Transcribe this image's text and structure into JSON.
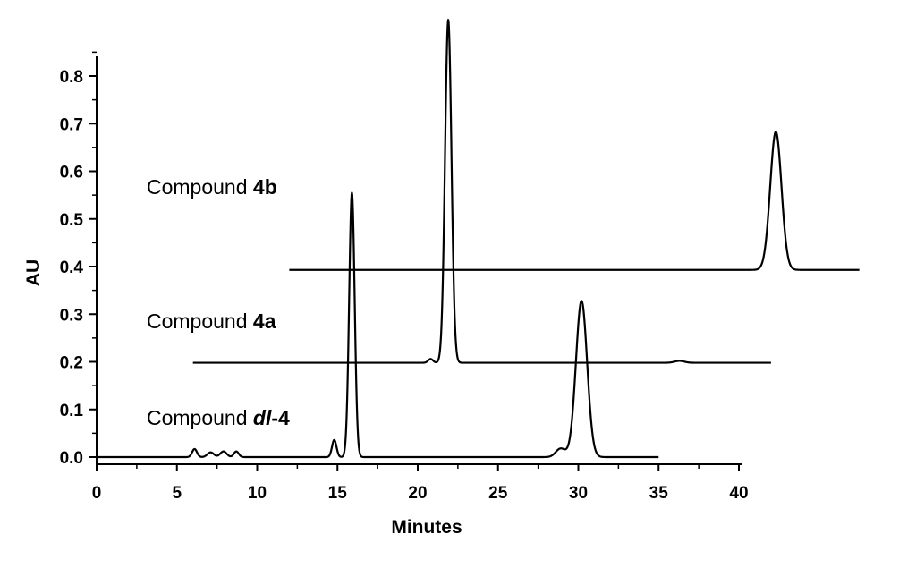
{
  "chart_data": {
    "type": "line",
    "xlabel": "Minutes",
    "ylabel": "AU",
    "xlim": [
      0,
      40
    ],
    "ylim": [
      0,
      0.85
    ],
    "x_ticks": [
      0,
      5,
      10,
      15,
      20,
      25,
      30,
      35,
      40
    ],
    "y_ticks": [
      0.0,
      0.1,
      0.2,
      0.3,
      0.4,
      0.5,
      0.6,
      0.7,
      0.8
    ],
    "x_tick_labels": [
      "0",
      "5",
      "10",
      "15",
      "20",
      "25",
      "30",
      "35",
      "40"
    ],
    "y_tick_labels": [
      "0.0",
      "0.1",
      "0.2",
      "0.3",
      "0.4",
      "0.5",
      "0.6",
      "0.7",
      "0.8"
    ],
    "grid": false,
    "series": [
      {
        "label_prefix": "Compound ",
        "label_emph": "dl",
        "label_suffix": "-4",
        "x_range": [
          0,
          35
        ],
        "baseline": 0.0,
        "peaks": [
          {
            "x": 6.1,
            "height": 0.017,
            "width": 0.15
          },
          {
            "x": 7.1,
            "height": 0.01,
            "width": 0.2
          },
          {
            "x": 7.9,
            "height": 0.012,
            "width": 0.2
          },
          {
            "x": 8.7,
            "height": 0.012,
            "width": 0.15
          },
          {
            "x": 14.8,
            "height": 0.036,
            "width": 0.14
          },
          {
            "x": 15.9,
            "height": 0.555,
            "width": 0.17
          },
          {
            "x": 28.9,
            "height": 0.018,
            "width": 0.3
          },
          {
            "x": 30.2,
            "height": 0.328,
            "width": 0.35
          }
        ]
      },
      {
        "label_prefix": "Compound ",
        "label_emph": "4a",
        "label_suffix": "",
        "x_range": [
          6,
          42
        ],
        "baseline": 0.198,
        "peaks": [
          {
            "x": 20.8,
            "height": 0.008,
            "width": 0.15
          },
          {
            "x": 21.9,
            "height": 0.72,
            "width": 0.2
          },
          {
            "x": 36.3,
            "height": 0.004,
            "width": 0.3
          }
        ]
      },
      {
        "label_prefix": "Compound ",
        "label_emph": "4b",
        "label_suffix": "",
        "x_range": [
          12,
          47.5
        ],
        "baseline": 0.393,
        "peaks": [
          {
            "x": 42.3,
            "height": 0.29,
            "width": 0.35
          }
        ]
      }
    ]
  }
}
